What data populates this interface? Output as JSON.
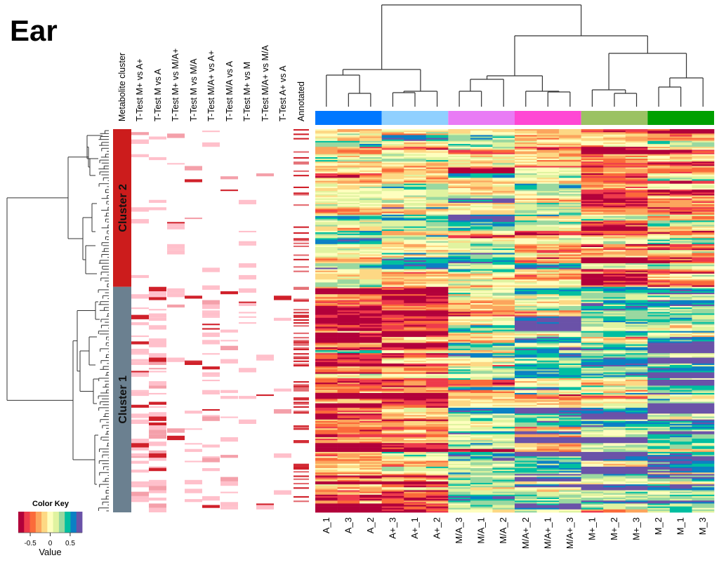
{
  "title": "Ear",
  "chart_data": {
    "type": "heatmap",
    "title": "Ear",
    "columns": [
      "A_1",
      "A_3",
      "A_2",
      "A+_3",
      "A+_1",
      "A+_2",
      "M/A_3",
      "M/A_1",
      "M/A_2",
      "M/A+_2",
      "M/A+_1",
      "M/A+_3",
      "M+_1",
      "M+_2",
      "M+_3",
      "M_2",
      "M_1",
      "M_3"
    ],
    "column_groups": [
      {
        "name": "A",
        "color": "#0077ff",
        "columns": [
          "A_1",
          "A_3",
          "A_2"
        ]
      },
      {
        "name": "A+",
        "color": "#8fd0ff",
        "columns": [
          "A+_3",
          "A+_1",
          "A+_2"
        ]
      },
      {
        "name": "M/A",
        "color": "#e97bf5",
        "columns": [
          "M/A_3",
          "M/A_1",
          "M/A_2"
        ]
      },
      {
        "name": "M/A+",
        "color": "#ff47d4",
        "columns": [
          "M/A+_2",
          "M/A+_1",
          "M/A+_3"
        ]
      },
      {
        "name": "M+",
        "color": "#9bc263",
        "columns": [
          "M+_1",
          "M+_2",
          "M+_3"
        ]
      },
      {
        "name": "M",
        "color": "#00a000",
        "columns": [
          "M_2",
          "M_1",
          "M_3"
        ]
      }
    ],
    "row_clusters": [
      {
        "name": "Cluster 2",
        "color": "#cc1c1c",
        "fraction_of_rows": 0.41
      },
      {
        "name": "Cluster 1",
        "color": "#6b8090",
        "fraction_of_rows": 0.59
      }
    ],
    "annotation_tracks": [
      "Metabolite cluster",
      "T-Test M+ vs A+",
      "T-Test M vs A",
      "T-Test M+ vs M/A+",
      "T-Test M vs M/A",
      "T-Test M/A+ vs A+",
      "T-Test M/A vs A",
      "T-Test M+ vs M",
      "T-Test M/A+ vs M/A",
      "T-Test A+ vs A",
      "Annotated"
    ],
    "cluster_mean_pattern": {
      "description": "approximate mean z-score per column group by row cluster",
      "groups": [
        "A",
        "A+",
        "M/A",
        "M/A+",
        "M+",
        "M"
      ],
      "Cluster 2": [
        0.0,
        0.05,
        0.15,
        0.0,
        -0.45,
        -0.2
      ],
      "Cluster 1": [
        -0.55,
        -0.5,
        0.1,
        0.3,
        0.35,
        0.5
      ]
    },
    "color_key": {
      "title": "Color Key",
      "xlabel": "Value",
      "ticks": [
        "-0.5",
        "0",
        "0.5"
      ],
      "range": [
        -0.8,
        0.8
      ],
      "colors": [
        "#b2003a",
        "#ee3b4b",
        "#fb6a3a",
        "#fca55d",
        "#fdd884",
        "#fefebe",
        "#e0f3a0",
        "#99d8a0",
        "#00bfa0",
        "#0a80c4",
        "#6a52a8"
      ]
    },
    "top_dendrogram": "samples clustered into A/A+ vs (M/A, M/A+) vs (M+, M)",
    "left_dendrogram": "metabolites split into Cluster 2 (top) and Cluster 1 (bottom)"
  }
}
